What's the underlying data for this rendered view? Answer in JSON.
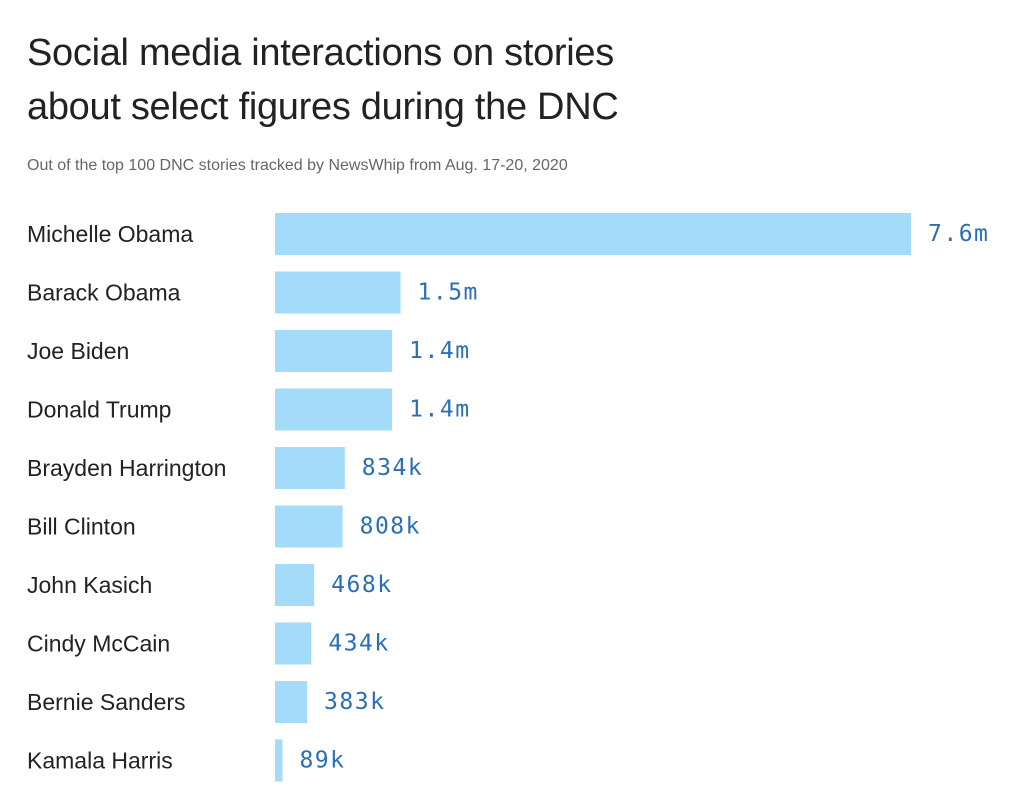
{
  "header": {
    "title_line1": "Social media interactions on stories",
    "title_line2": "about select figures during the DNC",
    "subtitle": "Out of the top 100 DNC stories tracked by NewsWhip from Aug. 17-20, 2020"
  },
  "colors": {
    "bar": "#a3dbf8",
    "value_label": "#2a6fb5"
  },
  "chart_data": {
    "type": "bar",
    "orientation": "horizontal",
    "title": "Social media interactions on stories about select figures during the DNC",
    "subtitle": "Out of the top 100 DNC stories tracked by NewsWhip from Aug. 17-20, 2020",
    "categories": [
      "Michelle Obama",
      "Barack Obama",
      "Joe Biden",
      "Donald Trump",
      "Brayden Harrington",
      "Bill Clinton",
      "John Kasich",
      "Cindy McCain",
      "Bernie Sanders",
      "Kamala Harris"
    ],
    "values": [
      7600000,
      1500000,
      1400000,
      1400000,
      834000,
      808000,
      468000,
      434000,
      383000,
      89000
    ],
    "value_labels": [
      "7.6m",
      "1.5m",
      "1.4m",
      "1.4m",
      "834k",
      "808k",
      "468k",
      "434k",
      "383k",
      "89k"
    ],
    "xlabel": "",
    "ylabel": "",
    "xlim": [
      0,
      7600000
    ],
    "grid": false,
    "legend": "none"
  }
}
